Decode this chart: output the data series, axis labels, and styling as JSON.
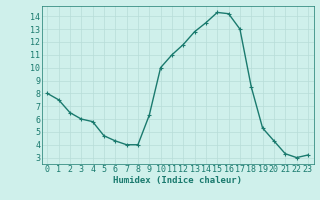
{
  "x": [
    0,
    1,
    2,
    3,
    4,
    5,
    6,
    7,
    8,
    9,
    10,
    11,
    12,
    13,
    14,
    15,
    16,
    17,
    18,
    19,
    20,
    21,
    22,
    23
  ],
  "y": [
    8,
    7.5,
    6.5,
    6,
    5.8,
    4.7,
    4.3,
    4.0,
    4.0,
    6.3,
    10.0,
    11.0,
    11.8,
    12.8,
    13.5,
    14.3,
    14.2,
    13.0,
    8.5,
    5.3,
    4.3,
    3.3,
    3.0,
    3.2
  ],
  "line_color": "#1a7a6e",
  "marker": "+",
  "marker_size": 3,
  "bg_color": "#cff0eb",
  "grid_color_major": "#b8ddd8",
  "grid_color_minor": "#d4ecea",
  "xlabel": "Humidex (Indice chaleur)",
  "xlim": [
    -0.5,
    23.5
  ],
  "ylim": [
    2.5,
    14.8
  ],
  "yticks": [
    3,
    4,
    5,
    6,
    7,
    8,
    9,
    10,
    11,
    12,
    13,
    14
  ],
  "xticks": [
    0,
    1,
    2,
    3,
    4,
    5,
    6,
    7,
    8,
    9,
    10,
    11,
    12,
    13,
    14,
    15,
    16,
    17,
    18,
    19,
    20,
    21,
    22,
    23
  ],
  "label_fontsize": 6.5,
  "tick_fontsize": 6,
  "line_width": 1.0,
  "marker_edge_width": 0.8
}
